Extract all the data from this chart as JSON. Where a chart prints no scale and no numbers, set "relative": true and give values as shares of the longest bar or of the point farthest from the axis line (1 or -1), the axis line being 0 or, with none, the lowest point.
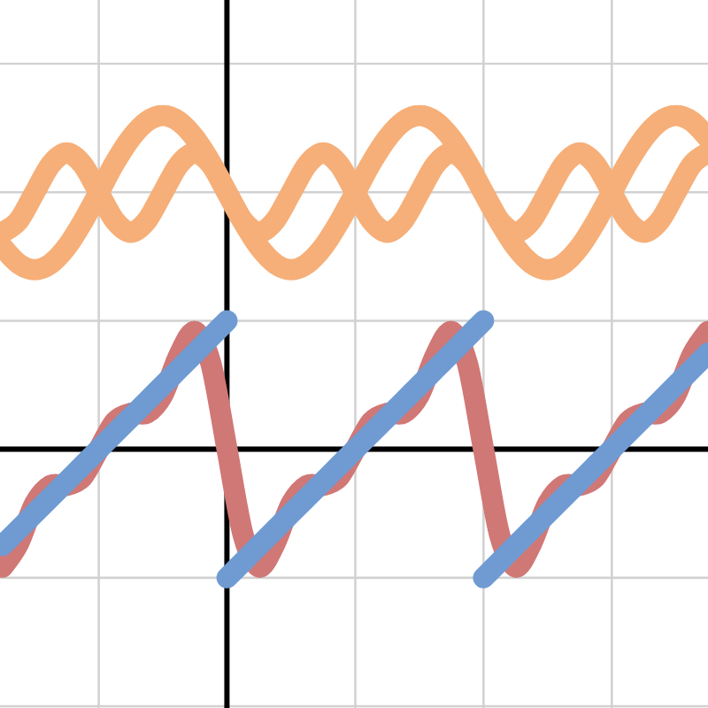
{
  "chart_data": {
    "type": "line",
    "relative": true,
    "grid": true,
    "categories": [
      null,
      null,
      null,
      null,
      null,
      null,
      null,
      null,
      null,
      null,
      null,
      null,
      null,
      null,
      null,
      null,
      null,
      null,
      null,
      null,
      null,
      null,
      null,
      null,
      null,
      null,
      null,
      null,
      null,
      null,
      null,
      null,
      null,
      null,
      null,
      null,
      null,
      null,
      null,
      null,
      null,
      null,
      null,
      null,
      null
    ],
    "series": [
      {
        "color": "#f6af78",
        "values": [
          0.606,
          0.556,
          0.538,
          0.556,
          0.606,
          0.681,
          0.769,
          0.858,
          0.932,
          0.982,
          1,
          0.982,
          0.932,
          0.858,
          0.769,
          0.681,
          0.606,
          0.556,
          0.538,
          0.556,
          0.606,
          0.681,
          0.769,
          0.858,
          0.932,
          0.982,
          1,
          0.982,
          0.932,
          0.858,
          0.769,
          0.681,
          0.606,
          0.556,
          0.538,
          0.556,
          0.606,
          0.681,
          0.769,
          0.858,
          0.932,
          0.982,
          1,
          0.982,
          0.932
        ]
      },
      {
        "color": "#f6af78",
        "values": [
          0.65,
          0.685,
          0.769,
          0.853,
          0.888,
          0.853,
          0.769,
          0.685,
          0.65,
          0.685,
          0.769,
          0.853,
          0.888,
          0.853,
          0.769,
          0.685,
          0.65,
          0.685,
          0.769,
          0.853,
          0.888,
          0.853,
          0.769,
          0.685,
          0.65,
          0.685,
          0.769,
          0.853,
          0.888,
          0.853,
          0.769,
          0.685,
          0.65,
          0.685,
          0.769,
          0.853,
          0.888,
          0.853,
          0.769,
          0.685,
          0.65,
          0.685,
          0.769,
          0.853,
          0.888
        ]
      },
      {
        "color": "#d07876",
        "values": [
          -0.353,
          -0.282,
          -0.163,
          -0.108,
          -0.108,
          -0.083,
          0,
          0.083,
          0.108,
          0.108,
          0.163,
          0.282,
          0.353,
          0.256,
          0,
          -0.256,
          -0.353,
          -0.282,
          -0.163,
          -0.108,
          -0.108,
          -0.083,
          0,
          0.083,
          0.108,
          0.108,
          0.163,
          0.282,
          0.353,
          0.256,
          0,
          -0.256,
          -0.353,
          -0.282,
          -0.163,
          -0.108,
          -0.108,
          -0.083,
          0,
          0.083,
          0.108,
          0.108,
          0.163,
          0.282,
          0.353
        ]
      },
      {
        "color": "#6f9bd2",
        "values": [
          -0.288,
          -0.24,
          -0.192,
          -0.144,
          -0.096,
          -0.048,
          0,
          0.048,
          0.096,
          0.144,
          0.192,
          0.24,
          0.288,
          0.337,
          0.385,
          null,
          null,
          null,
          null,
          null,
          null,
          null,
          null,
          null,
          null,
          null,
          null,
          null,
          null,
          null,
          null,
          null,
          null,
          null,
          null,
          null,
          null,
          null,
          null,
          null,
          null,
          null,
          null,
          null,
          null
        ]
      },
      {
        "color": "#6f9bd2",
        "values": [
          null,
          null,
          null,
          null,
          null,
          null,
          null,
          null,
          null,
          null,
          null,
          null,
          null,
          null,
          -0.385,
          -0.337,
          -0.288,
          -0.24,
          -0.192,
          -0.144,
          -0.096,
          -0.048,
          0,
          0.048,
          0.096,
          0.144,
          0.192,
          0.24,
          0.288,
          0.337,
          0.385,
          null,
          null,
          null,
          null,
          null,
          null,
          null,
          null,
          null,
          null,
          null,
          null,
          null,
          null
        ]
      },
      {
        "color": "#6f9bd2",
        "values": [
          null,
          null,
          null,
          null,
          null,
          null,
          null,
          null,
          null,
          null,
          null,
          null,
          null,
          null,
          null,
          null,
          null,
          null,
          null,
          null,
          null,
          null,
          null,
          null,
          null,
          null,
          null,
          null,
          null,
          null,
          -0.385,
          -0.337,
          -0.288,
          -0.24,
          -0.192,
          -0.144,
          -0.096,
          -0.048,
          0,
          0.048,
          0.096,
          0.144,
          0.192,
          0.24,
          0.288
        ]
      }
    ]
  }
}
